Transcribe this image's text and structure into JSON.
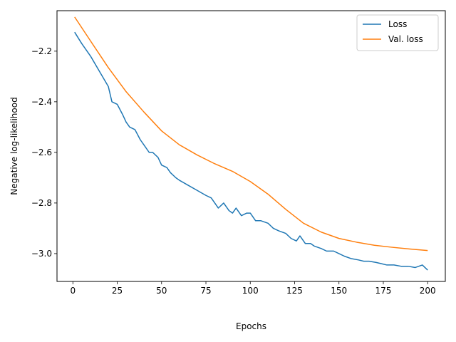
{
  "chart_data": {
    "type": "line",
    "title": "",
    "xlabel": "Epochs",
    "ylabel": "Negative log-likelihood",
    "xlim": [
      -8.95,
      209.95
    ],
    "ylim": [
      -3.11,
      -2.04
    ],
    "xticks": [
      0,
      25,
      50,
      75,
      100,
      125,
      150,
      175,
      200
    ],
    "xtick_labels": [
      "0",
      "25",
      "50",
      "75",
      "100",
      "125",
      "150",
      "175",
      "200"
    ],
    "yticks": [
      -3.0,
      -2.8,
      -2.6,
      -2.4,
      -2.2
    ],
    "ytick_labels": [
      "−3.0",
      "−2.8",
      "−2.6",
      "−2.4",
      "−2.2"
    ],
    "grid": false,
    "legend_position": "top-right",
    "series": [
      {
        "name": "Loss",
        "color": "#1f77b4",
        "x": [
          1,
          5,
          10,
          15,
          20,
          22,
          25,
          28,
          30,
          32,
          35,
          38,
          40,
          43,
          45,
          48,
          50,
          53,
          55,
          58,
          60,
          65,
          70,
          75,
          78,
          82,
          85,
          88,
          90,
          92,
          95,
          98,
          100,
          103,
          106,
          110,
          113,
          116,
          120,
          123,
          126,
          128,
          131,
          134,
          136,
          140,
          143,
          147,
          150,
          153,
          157,
          161,
          164,
          167,
          171,
          174,
          177,
          181,
          185,
          189,
          193,
          197,
          200
        ],
        "y": [
          -2.125,
          -2.17,
          -2.22,
          -2.28,
          -2.34,
          -2.4,
          -2.41,
          -2.45,
          -2.48,
          -2.5,
          -2.51,
          -2.55,
          -2.57,
          -2.6,
          -2.6,
          -2.62,
          -2.65,
          -2.66,
          -2.68,
          -2.7,
          -2.71,
          -2.73,
          -2.75,
          -2.77,
          -2.78,
          -2.82,
          -2.8,
          -2.83,
          -2.84,
          -2.82,
          -2.85,
          -2.84,
          -2.84,
          -2.87,
          -2.87,
          -2.88,
          -2.9,
          -2.91,
          -2.92,
          -2.94,
          -2.95,
          -2.93,
          -2.96,
          -2.96,
          -2.97,
          -2.98,
          -2.99,
          -2.99,
          -3.0,
          -3.01,
          -3.02,
          -3.025,
          -3.03,
          -3.03,
          -3.035,
          -3.04,
          -3.045,
          -3.045,
          -3.05,
          -3.05,
          -3.055,
          -3.045,
          -3.065
        ]
      },
      {
        "name": "Val. loss",
        "color": "#ff7f0e",
        "x": [
          1,
          10,
          20,
          30,
          40,
          50,
          60,
          70,
          80,
          90,
          100,
          110,
          120,
          130,
          140,
          150,
          160,
          170,
          180,
          190,
          200
        ],
        "y": [
          -2.065,
          -2.16,
          -2.265,
          -2.36,
          -2.44,
          -2.515,
          -2.57,
          -2.61,
          -2.645,
          -2.675,
          -2.715,
          -2.765,
          -2.825,
          -2.88,
          -2.915,
          -2.94,
          -2.955,
          -2.967,
          -2.975,
          -2.982,
          -2.988
        ]
      }
    ]
  }
}
